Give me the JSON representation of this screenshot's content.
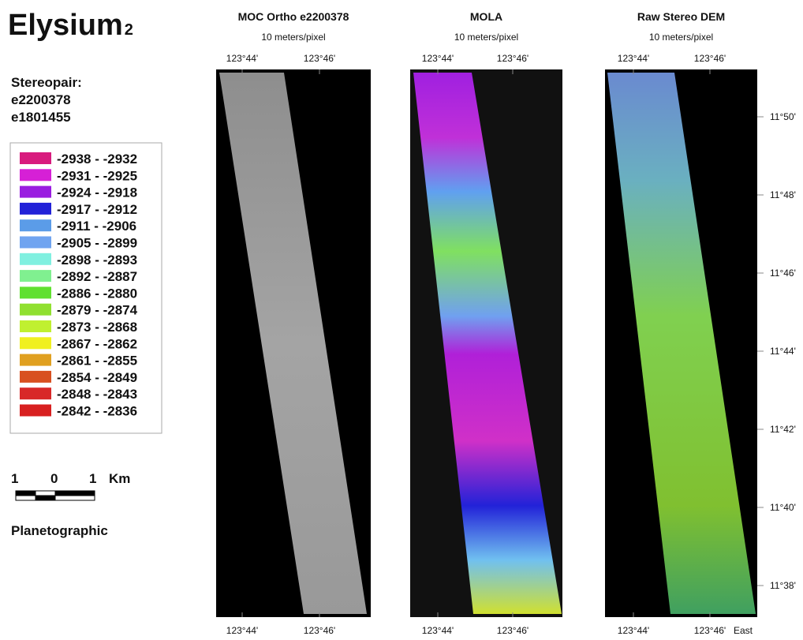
{
  "title": "Elysium",
  "title_sub": "2",
  "stereopair": {
    "label": "Stereopair:",
    "images": [
      "e2200378",
      "e1801455"
    ]
  },
  "legend": [
    {
      "label": "-2938 - -2932",
      "color": "#d81b7e"
    },
    {
      "label": "-2931 - -2925",
      "color": "#d620d6"
    },
    {
      "label": "-2924 - -2918",
      "color": "#9a1de0"
    },
    {
      "label": "-2917 - -2912",
      "color": "#2222d8"
    },
    {
      "label": "-2911 - -2906",
      "color": "#5b9ce8"
    },
    {
      "label": "-2905 - -2899",
      "color": "#70a4f0"
    },
    {
      "label": "-2898 - -2893",
      "color": "#80f0e0"
    },
    {
      "label": "-2892 - -2887",
      "color": "#80f090"
    },
    {
      "label": "-2886 - -2880",
      "color": "#60e030"
    },
    {
      "label": "-2879 - -2874",
      "color": "#90e030"
    },
    {
      "label": "-2873 - -2868",
      "color": "#c0f030"
    },
    {
      "label": "-2867 - -2862",
      "color": "#f0f020"
    },
    {
      "label": "-2861 - -2855",
      "color": "#e0a020"
    },
    {
      "label": "-2854 - -2849",
      "color": "#d85020"
    },
    {
      "label": "-2848 - -2843",
      "color": "#d82828"
    },
    {
      "label": "-2842 - -2836",
      "color": "#d82020"
    }
  ],
  "scale_bar": {
    "labels": [
      "1",
      "0",
      "1"
    ],
    "unit": "Km"
  },
  "projection": "Planetographic",
  "panels": [
    {
      "title": "MOC Ortho e2200378",
      "subtitle": "10 meters/pixel",
      "top_ticks": [
        "123°44'",
        "123°46'"
      ],
      "bottom_ticks": [
        "123°44'",
        "123°46'"
      ]
    },
    {
      "title": "MOLA",
      "subtitle": "10 meters/pixel",
      "top_ticks": [
        "123°44'",
        "123°46'"
      ],
      "bottom_ticks": [
        "123°44'",
        "123°46'"
      ]
    },
    {
      "title": "Raw Stereo DEM",
      "subtitle": "10 meters/pixel",
      "top_ticks": [
        "123°44'",
        "123°46'"
      ],
      "bottom_ticks": [
        "123°44'",
        "123°46'"
      ]
    }
  ],
  "lat_ticks": [
    "11°50'",
    "11°48'",
    "11°46'",
    "11°44'",
    "11°42'",
    "11°40'",
    "11°38'"
  ],
  "east_label": "East"
}
